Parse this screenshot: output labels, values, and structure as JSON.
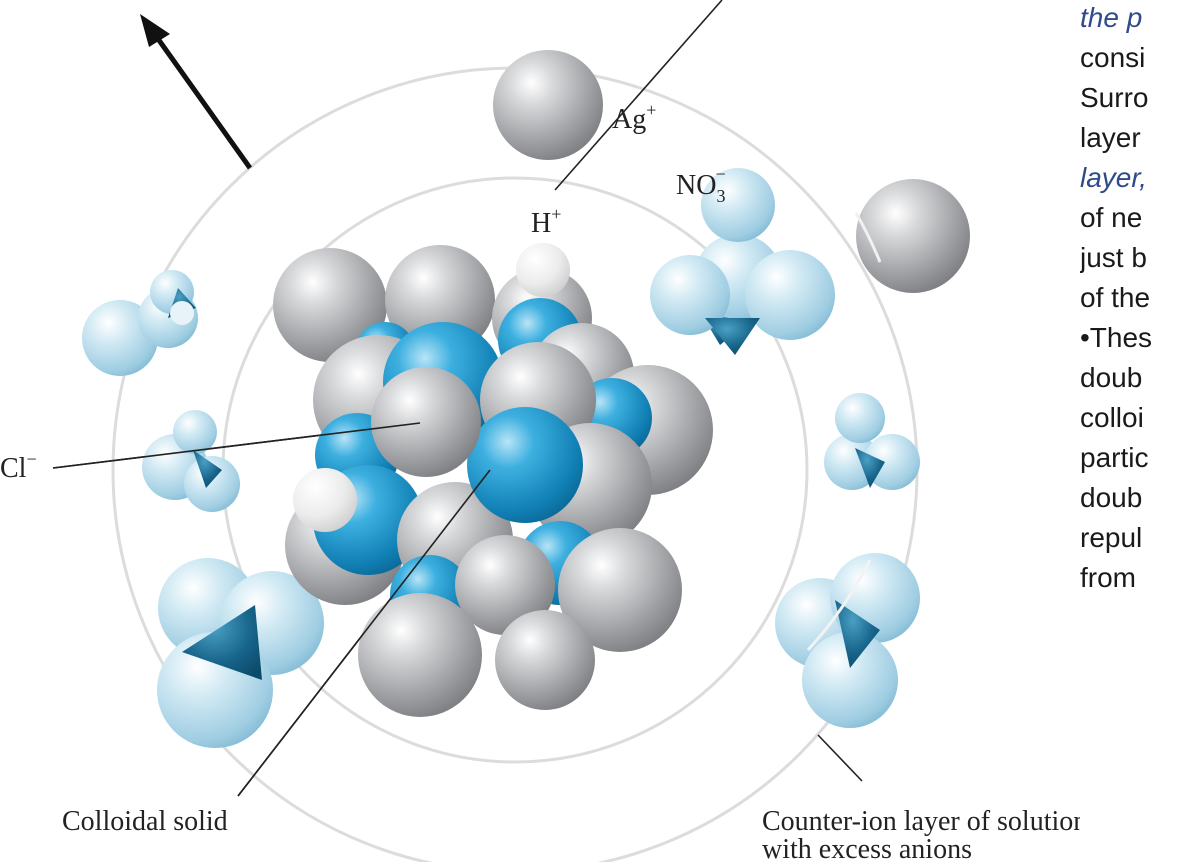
{
  "labels": {
    "silver_ion": "Ag",
    "silver_ion_charge": "+",
    "nitrate": "NO",
    "nitrate_sub": "3",
    "nitrate_charge": "−",
    "hydrogen_ion": "H",
    "hydrogen_ion_charge": "+",
    "chloride": "Cl",
    "chloride_charge": "−",
    "colloidal_solid": "Colloidal solid",
    "counter_ion_line1": "Counter-ion layer of solution",
    "counter_ion_line2": "with excess anions"
  },
  "side_text": {
    "lines": [
      {
        "text": "the p",
        "italic": true
      },
      {
        "text": "consi",
        "italic": false
      },
      {
        "text": "Surro",
        "italic": false
      },
      {
        "text": "layer",
        "italic": false
      },
      {
        "text": "layer,",
        "italic": true
      },
      {
        "text": "of ne",
        "italic": false
      },
      {
        "text": "just b",
        "italic": false
      },
      {
        "text": "of the",
        "italic": false
      },
      {
        "text": "•Thes",
        "italic": false
      },
      {
        "text": "doub",
        "italic": false
      },
      {
        "text": "colloi",
        "italic": false
      },
      {
        "text": "partic",
        "italic": false
      },
      {
        "text": "doub",
        "italic": false
      },
      {
        "text": "repul",
        "italic": false
      },
      {
        "text": "from",
        "italic": false
      }
    ]
  },
  "colors": {
    "gray_sphere": "#a8a9ab",
    "blue_sphere": "#1d95c9",
    "white_sphere": "#e6e6e6",
    "light_blue_sphere": "#b6d9e8",
    "dark_teal": "#1b6b8f",
    "ring": "#dcdcdc"
  }
}
